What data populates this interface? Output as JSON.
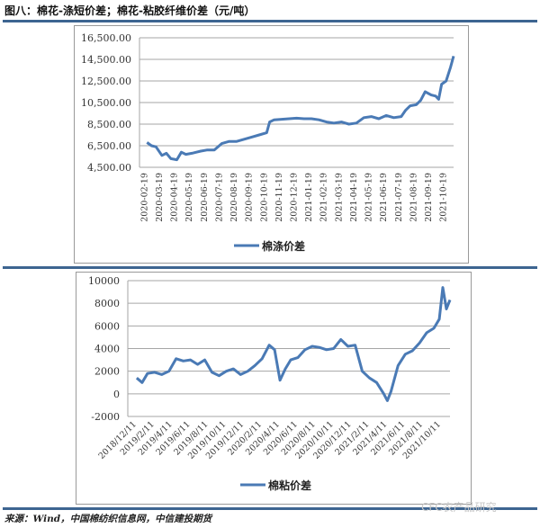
{
  "figure": {
    "title": "图八：棉花-涤短价差；棉花-粘胶纤维价差（元/吨）",
    "source": "来源：Wind，中国棉纺织信息网，中信建投期货",
    "watermark": "CFC农产品研究"
  },
  "colors": {
    "line": "#4a7ab5",
    "rule": "#3d6591",
    "grid": "#a6a6a6"
  },
  "chart_data": [
    {
      "type": "line",
      "title": "",
      "legend": [
        "棉涤价差"
      ],
      "legend_position": "bottom",
      "grid": true,
      "ylim": [
        4500,
        16500
      ],
      "yticks": [
        "16,500.00",
        "14,500.00",
        "12,500.00",
        "10,500.00",
        "8,500.00",
        "6,500.00",
        "4,500.00"
      ],
      "xticks": [
        "2020-02-19",
        "2020-03-19",
        "2020-04-19",
        "2020-05-19",
        "2020-06-19",
        "2020-07-19",
        "2020-08-19",
        "2020-09-19",
        "2020-10-19",
        "2020-11-19",
        "2020-12-19",
        "2021-01-19",
        "2021-02-19",
        "2021-03-19",
        "2021-04-19",
        "2021-05-19",
        "2021-06-19",
        "2021-07-19",
        "2021-08-19",
        "2021-09-19",
        "2021-10-19"
      ],
      "series": [
        {
          "name": "棉涤价差",
          "x": [
            0,
            0.3,
            0.6,
            1.0,
            1.3,
            1.6,
            2.0,
            2.3,
            2.6,
            3.0,
            3.3,
            3.6,
            4.0,
            4.5,
            5.0,
            5.5,
            6.0,
            6.5,
            7.0,
            7.5,
            8.0,
            8.2,
            8.5,
            9.0,
            9.5,
            10.0,
            10.5,
            11.0,
            11.5,
            12.0,
            12.5,
            13.0,
            13.5,
            14.0,
            14.5,
            15.0,
            15.5,
            16.0,
            16.5,
            17.0,
            17.3,
            17.6,
            18.0,
            18.3,
            18.6,
            19.0,
            19.3,
            19.5,
            19.7,
            20.0,
            20.3,
            20.6
          ],
          "values": [
            6800,
            6500,
            6400,
            5600,
            5800,
            5300,
            5200,
            5900,
            5700,
            5800,
            5900,
            6000,
            6100,
            6100,
            6700,
            6900,
            6900,
            7100,
            7300,
            7500,
            7700,
            8700,
            8900,
            8950,
            9000,
            9050,
            9000,
            9000,
            8900,
            8700,
            8600,
            8700,
            8500,
            8600,
            9100,
            9200,
            9000,
            9300,
            9100,
            9200,
            9800,
            10200,
            10300,
            10700,
            11500,
            11200,
            11100,
            10800,
            12200,
            12500,
            13800,
            14800
          ]
        }
      ]
    },
    {
      "type": "line",
      "title": "",
      "legend": [
        "棉粘价差"
      ],
      "legend_position": "bottom",
      "grid": true,
      "ylim": [
        -2000,
        10000
      ],
      "yticks": [
        "10000",
        "8000",
        "6000",
        "4000",
        "2000",
        "0",
        "-2000"
      ],
      "xticks": [
        "2018/12/11",
        "2019/2/11",
        "2019/4/11",
        "2019/6/11",
        "2019/8/11",
        "2019/10/11",
        "2019/12/11",
        "2020/2/11",
        "2020/4/11",
        "2020/6/11",
        "2020/8/11",
        "2020/10/11",
        "2020/12/11",
        "2021/2/11",
        "2021/4/11",
        "2021/6/11",
        "2021/8/11",
        "2021/10/11"
      ],
      "series": [
        {
          "name": "棉粘价差",
          "x": [
            0,
            0.3,
            0.6,
            1.0,
            1.4,
            1.8,
            2.2,
            2.6,
            3.0,
            3.4,
            3.8,
            4.2,
            4.6,
            5.0,
            5.4,
            5.8,
            6.2,
            6.6,
            7.0,
            7.4,
            7.7,
            8.0,
            8.3,
            8.6,
            9.0,
            9.4,
            9.8,
            10.2,
            10.6,
            11.0,
            11.4,
            11.8,
            12.2,
            12.6,
            13.0,
            13.4,
            13.8,
            14.0,
            14.2,
            14.6,
            15.0,
            15.4,
            15.8,
            16.2,
            16.6,
            16.9,
            17.1,
            17.3,
            17.5
          ],
          "values": [
            1400,
            1000,
            1800,
            1900,
            1700,
            2000,
            3100,
            2900,
            3000,
            2600,
            3000,
            1900,
            1600,
            2000,
            2200,
            1700,
            2000,
            2500,
            3100,
            4300,
            3900,
            1200,
            2200,
            3000,
            3200,
            3900,
            4200,
            4100,
            3900,
            4000,
            4800,
            4200,
            4300,
            2000,
            1400,
            1000,
            0,
            -600,
            200,
            2500,
            3500,
            3800,
            4500,
            5400,
            5800,
            6600,
            9400,
            7500,
            8300
          ]
        }
      ]
    }
  ]
}
